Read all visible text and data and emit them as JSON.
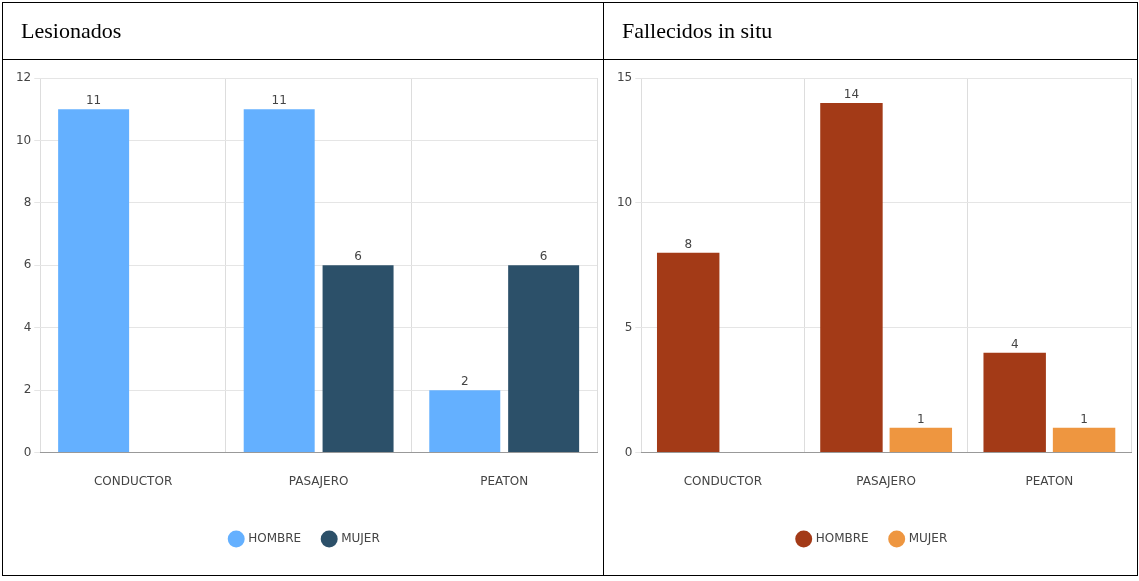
{
  "chart_data": [
    {
      "type": "bar",
      "title": "Lesionados",
      "categories": [
        "CONDUCTOR",
        "PASAJERO",
        "PEATON"
      ],
      "ylim": [
        0,
        12
      ],
      "yticks": [
        0,
        2,
        4,
        6,
        8,
        10,
        12
      ],
      "grid": true,
      "legend": "bottom",
      "data_labels": true,
      "series": [
        {
          "name": "HOMBRE",
          "color": "#64b0ff",
          "values": [
            11,
            11,
            2
          ]
        },
        {
          "name": "MUJER",
          "color": "#2c5069",
          "values": [
            null,
            6,
            6
          ]
        }
      ]
    },
    {
      "type": "bar",
      "title": "Fallecidos in situ",
      "categories": [
        "CONDUCTOR",
        "PASAJERO",
        "PEATON"
      ],
      "ylim": [
        0,
        15
      ],
      "yticks": [
        0,
        5,
        10,
        15
      ],
      "grid": true,
      "legend": "bottom",
      "data_labels": true,
      "series": [
        {
          "name": "HOMBRE",
          "color": "#a33a17",
          "values": [
            8,
            14,
            4
          ]
        },
        {
          "name": "MUJER",
          "color": "#ee9640",
          "values": [
            null,
            1,
            1
          ]
        }
      ]
    }
  ]
}
